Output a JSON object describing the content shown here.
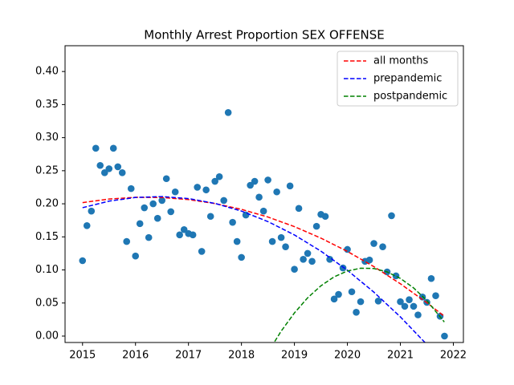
{
  "chart_data": {
    "type": "scatter",
    "title": "Monthly Arrest Proportion SEX OFFENSE",
    "xlim": [
      2014.67,
      2022.19
    ],
    "ylim": [
      -0.0097,
      0.439
    ],
    "xticks": [
      2015,
      2016,
      2017,
      2018,
      2019,
      2020,
      2021,
      2022
    ],
    "yticks": [
      {
        "value": 0,
        "label": "0.00"
      },
      {
        "value": 0.05,
        "label": "0.05"
      },
      {
        "value": 0.1,
        "label": "0.10"
      },
      {
        "value": 0.15,
        "label": "0.15"
      },
      {
        "value": 0.2,
        "label": "0.20"
      },
      {
        "value": 0.25,
        "label": "0.25"
      },
      {
        "value": 0.3,
        "label": "0.30"
      },
      {
        "value": 0.35,
        "label": "0.35"
      },
      {
        "value": 0.4,
        "label": "0.40"
      }
    ],
    "legend": "upper right",
    "series": [
      {
        "type": "scatter",
        "color": "#1f77b4",
        "x": [
          2015.0,
          2015.083,
          2015.167,
          2015.25,
          2015.333,
          2015.417,
          2015.5,
          2015.583,
          2015.667,
          2015.75,
          2015.833,
          2015.917,
          2016.0,
          2016.083,
          2016.167,
          2016.25,
          2016.333,
          2016.417,
          2016.5,
          2016.583,
          2016.667,
          2016.75,
          2016.833,
          2016.917,
          2017.0,
          2017.083,
          2017.167,
          2017.25,
          2017.333,
          2017.417,
          2017.5,
          2017.583,
          2017.667,
          2017.75,
          2017.833,
          2017.917,
          2018.0,
          2018.083,
          2018.167,
          2018.25,
          2018.333,
          2018.417,
          2018.5,
          2018.583,
          2018.667,
          2018.75,
          2018.833,
          2018.917,
          2019.0,
          2019.083,
          2019.167,
          2019.25,
          2019.333,
          2019.417,
          2019.5,
          2019.583,
          2019.667,
          2019.75,
          2019.833,
          2019.917,
          2020.0,
          2020.083,
          2020.167,
          2020.25,
          2020.333,
          2020.417,
          2020.5,
          2020.583,
          2020.667,
          2020.75,
          2020.833,
          2020.917,
          2021.0,
          2021.083,
          2021.167,
          2021.25,
          2021.333,
          2021.417,
          2021.5,
          2021.583,
          2021.667,
          2021.75,
          2021.833
        ],
        "values": [
          0.114,
          0.167,
          0.189,
          0.284,
          0.258,
          0.247,
          0.253,
          0.284,
          0.256,
          0.247,
          0.143,
          0.223,
          0.121,
          0.17,
          0.194,
          0.149,
          0.2,
          0.178,
          0.205,
          0.238,
          0.188,
          0.218,
          0.153,
          0.161,
          0.155,
          0.153,
          0.225,
          0.128,
          0.221,
          0.181,
          0.234,
          0.241,
          0.205,
          0.338,
          0.172,
          0.143,
          0.119,
          0.183,
          0.228,
          0.234,
          0.21,
          0.189,
          0.236,
          0.143,
          0.218,
          0.149,
          0.135,
          0.227,
          0.101,
          0.193,
          0.116,
          0.125,
          0.113,
          0.166,
          0.184,
          0.181,
          0.116,
          0.056,
          0.063,
          0.103,
          0.131,
          0.067,
          0.036,
          0.052,
          0.113,
          0.115,
          0.14,
          0.053,
          0.135,
          0.097,
          0.182,
          0.091,
          0.052,
          0.045,
          0.055,
          0.045,
          0.032,
          0.059,
          0.051,
          0.087,
          0.061,
          0.03,
          0.0
        ]
      },
      {
        "type": "line",
        "name": "all months",
        "color": "#ff0000",
        "x": [
          2015,
          2015.5,
          2016,
          2016.5,
          2017,
          2017.5,
          2018,
          2018.5,
          2019,
          2019.5,
          2020,
          2020.5,
          2021,
          2021.5,
          2021.83
        ],
        "values": [
          0.2018,
          0.2072,
          0.2098,
          0.2095,
          0.2064,
          0.2004,
          0.1916,
          0.18,
          0.1655,
          0.1481,
          0.128,
          0.105,
          0.0791,
          0.0504,
          0.03
        ]
      },
      {
        "type": "line",
        "name": "prepandemic",
        "color": "#0000ff",
        "x": [
          2015,
          2015.5,
          2016,
          2016.5,
          2017,
          2017.5,
          2018,
          2018.5,
          2019,
          2019.5,
          2020,
          2020.5,
          2021,
          2021.5,
          2021.83
        ],
        "values": [
          0.1941,
          0.204,
          0.2096,
          0.2109,
          0.2079,
          0.2006,
          0.189,
          0.1731,
          0.1529,
          0.1284,
          0.0995,
          0.0664,
          0.029,
          -0.0127,
          -0.0426
        ]
      },
      {
        "type": "line",
        "name": "postpandemic",
        "color": "#008000",
        "x": [
          2018.5,
          2018.75,
          2019,
          2019.25,
          2019.5,
          2019.75,
          2020,
          2020.25,
          2020.5,
          2020.75,
          2021,
          2021.25,
          2021.5,
          2021.83
        ],
        "values": [
          -0.0247,
          0.0075,
          0.035,
          0.0579,
          0.076,
          0.0896,
          0.0984,
          0.1026,
          0.1022,
          0.097,
          0.0872,
          0.0728,
          0.0537,
          0.0213
        ]
      }
    ]
  }
}
